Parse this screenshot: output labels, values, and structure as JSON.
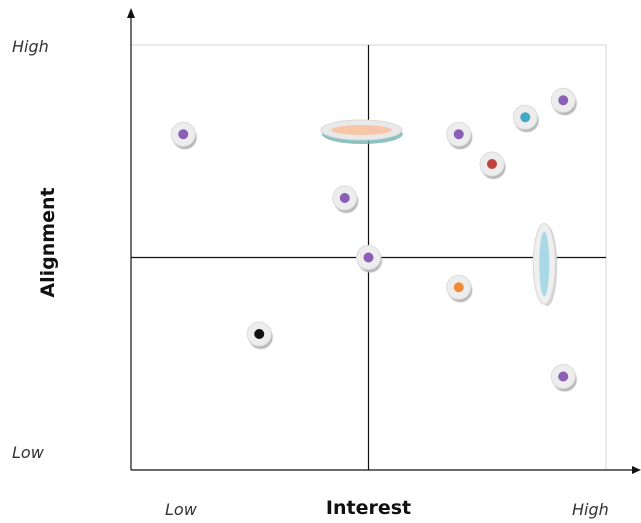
{
  "chart_data": {
    "type": "scatter",
    "title": "",
    "xlabel": "Interest",
    "ylabel": "Alignment",
    "x_ticks": [
      "Low",
      "High"
    ],
    "y_ticks": [
      "Low",
      "High"
    ],
    "xlim": [
      0,
      1
    ],
    "ylim": [
      0,
      1
    ],
    "quadrant_dividers": {
      "x": 0.5,
      "y": 0.5
    },
    "grid": false,
    "legend": "none",
    "colors": {
      "purple": "#8a5fb5",
      "teal": "#43a9c9",
      "red": "#c0433f",
      "orange": "#f08a36",
      "black": "#111111",
      "peach": "#f7c6a8",
      "light-blue": "#a9d8e6"
    },
    "points": [
      {
        "x": 0.11,
        "y": 0.79,
        "color": "purple"
      },
      {
        "x": 0.45,
        "y": 0.64,
        "color": "purple"
      },
      {
        "x": 0.5,
        "y": 0.5,
        "color": "purple"
      },
      {
        "x": 0.69,
        "y": 0.79,
        "color": "purple"
      },
      {
        "x": 0.83,
        "y": 0.83,
        "color": "teal"
      },
      {
        "x": 0.91,
        "y": 0.87,
        "color": "purple"
      },
      {
        "x": 0.76,
        "y": 0.72,
        "color": "red"
      },
      {
        "x": 0.69,
        "y": 0.43,
        "color": "orange"
      },
      {
        "x": 0.27,
        "y": 0.32,
        "color": "black"
      },
      {
        "x": 0.91,
        "y": 0.22,
        "color": "purple"
      }
    ],
    "ranges": [
      {
        "orientation": "horizontal",
        "x_from": 0.4,
        "x_to": 0.57,
        "y": 0.8,
        "color": "peach"
      },
      {
        "orientation": "vertical",
        "x": 0.87,
        "y_from": 0.39,
        "y_to": 0.58,
        "color": "light-blue"
      }
    ]
  }
}
